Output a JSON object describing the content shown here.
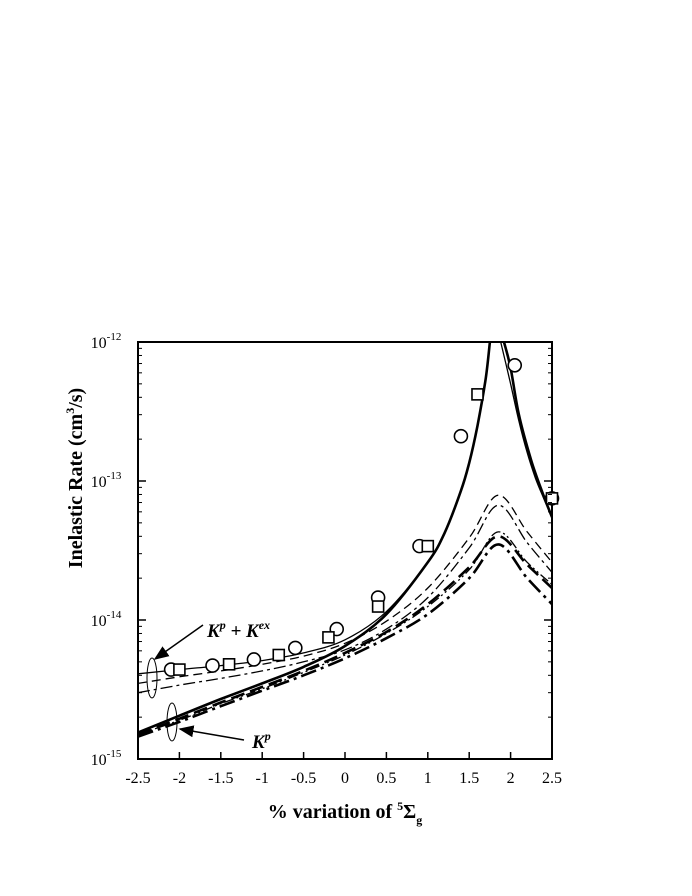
{
  "chart_data": {
    "type": "line",
    "xlabel": {
      "prefix": "% variation of ",
      "sup": "5",
      "main": "Σ",
      "sub": "g"
    },
    "ylabel": {
      "main": "Inelastic Rate (cm",
      "sup": "3",
      "tail": "/s)"
    },
    "xlim": [
      -2.5,
      2.5
    ],
    "ylim": [
      1e-15,
      1e-12
    ],
    "yscale": "log",
    "xticks": [
      "-2.5",
      "-2",
      "-1.5",
      "-1",
      "-0.5",
      "0",
      "0.5",
      "1",
      "1.5",
      "2",
      "2.5"
    ],
    "yticks": [
      {
        "base": "10",
        "exp": "-12",
        "value": 1e-12
      },
      {
        "base": "10",
        "exp": "-13",
        "value": 1e-13
      },
      {
        "base": "10",
        "exp": "-14",
        "value": 1e-14
      },
      {
        "base": "10",
        "exp": "-15",
        "value": 1e-15
      }
    ],
    "annotations": {
      "top": {
        "a": "K",
        "a_sup": "p",
        "plus": " + K",
        "b_sup": "ex"
      },
      "bottom": {
        "a": "K",
        "a_sup": "p"
      }
    },
    "series": [
      {
        "style": "thick-solid",
        "x": [
          -2.5,
          -2,
          -1.5,
          -1,
          -0.5,
          0,
          0.5,
          1,
          1.2,
          1.4,
          1.5,
          1.6,
          1.7,
          1.75
        ],
        "y": [
          1.55e-15,
          2.05e-15,
          2.7e-15,
          3.5e-15,
          4.6e-15,
          6.5e-15,
          1.1e-14,
          2.6e-14,
          4.2e-14,
          8.5e-14,
          1.35e-13,
          2.5e-13,
          5.5e-13,
          1e-12
        ]
      },
      {
        "style": "thick-solid",
        "x": [
          1.92,
          2.0,
          2.1,
          2.25,
          2.4,
          2.5
        ],
        "y": [
          1e-12,
          6.5e-13,
          3e-13,
          1.4e-13,
          7.8e-14,
          5.5e-14
        ]
      },
      {
        "style": "thin-solid",
        "x": [
          -2.5,
          -2,
          -1.5,
          -1,
          -0.5,
          0,
          0.5,
          1,
          1.2,
          1.4,
          1.5,
          1.6,
          1.7,
          1.75
        ],
        "y": [
          4.1e-15,
          4.4e-15,
          4.7e-15,
          5.1e-15,
          5.8e-15,
          7.2e-15,
          1.15e-14,
          2.6e-14,
          4.2e-14,
          8.5e-14,
          1.35e-13,
          2.5e-13,
          5.5e-13,
          1e-12
        ]
      },
      {
        "style": "thin-solid",
        "x": [
          1.88,
          2.0,
          2.1,
          2.2,
          2.3,
          2.4,
          2.5
        ],
        "y": [
          1e-12,
          5e-13,
          2.7e-13,
          1.6e-13,
          1.05e-13,
          7.5e-14,
          5.5e-14
        ]
      },
      {
        "style": "thin-dashed",
        "x": [
          -2.5,
          -2,
          -1.5,
          -1,
          -0.5,
          0,
          0.5,
          1,
          1.5,
          1.85,
          2.2,
          2.5
        ],
        "y": [
          3.5e-15,
          3.9e-15,
          4.3e-15,
          4.8e-15,
          5.5e-15,
          6.8e-15,
          9.8e-15,
          1.7e-14,
          3.9e-14,
          7.9e-14,
          4.3e-14,
          2.6e-14
        ]
      },
      {
        "style": "thin-dashdot",
        "x": [
          -2.5,
          -2,
          -1.5,
          -1,
          -0.5,
          0,
          0.5,
          1,
          1.5,
          1.85,
          2.2,
          2.5
        ],
        "y": [
          3e-15,
          3.4e-15,
          3.8e-15,
          4.3e-15,
          5e-15,
          6.1e-15,
          8.6e-15,
          1.45e-14,
          3.3e-14,
          6.7e-14,
          3.6e-14,
          2.2e-14
        ]
      },
      {
        "style": "thick-dashed",
        "x": [
          -2.5,
          -2,
          -1.5,
          -1,
          -0.5,
          0,
          0.5,
          1,
          1.5,
          1.85,
          2.2,
          2.5
        ],
        "y": [
          1.5e-15,
          1.95e-15,
          2.55e-15,
          3.3e-15,
          4.3e-15,
          5.8e-15,
          8.2e-15,
          1.3e-14,
          2.4e-14,
          4e-14,
          2.5e-14,
          1.7e-14
        ]
      },
      {
        "style": "thick-dashdot",
        "x": [
          -2.5,
          -2,
          -1.5,
          -1,
          -0.5,
          0,
          0.5,
          1,
          1.5,
          1.85,
          2.2,
          2.5
        ],
        "y": [
          1.45e-15,
          1.85e-15,
          2.4e-15,
          3.1e-15,
          4e-15,
          5.3e-15,
          7.4e-15,
          1.1e-14,
          2e-14,
          3.5e-14,
          2e-14,
          1.3e-14
        ]
      },
      {
        "style": "thin-dashdotdot",
        "x": [
          -2.5,
          -2,
          -1.5,
          -1,
          -0.5,
          0,
          0.5,
          1,
          1.5,
          1.85,
          2.2,
          2.5
        ],
        "y": [
          1.5e-15,
          1.9e-15,
          2.5e-15,
          3.2e-15,
          4.2e-15,
          5.6e-15,
          8e-15,
          1.25e-14,
          2.3e-14,
          4.3e-14,
          2.6e-14,
          1.8e-14
        ]
      }
    ],
    "markers": {
      "circles": [
        [
          -2.1,
          4.4e-15
        ],
        [
          -1.6,
          4.7e-15
        ],
        [
          -1.1,
          5.2e-15
        ],
        [
          -0.6,
          6.3e-15
        ],
        [
          -0.1,
          8.6e-15
        ],
        [
          0.4,
          1.45e-14
        ],
        [
          0.9,
          3.4e-14
        ],
        [
          1.4,
          2.1e-13
        ],
        [
          2.05,
          6.8e-13
        ],
        [
          2.5,
          7.5e-14
        ]
      ],
      "squares": [
        [
          -2.0,
          4.4e-15
        ],
        [
          -1.4,
          4.8e-15
        ],
        [
          -0.8,
          5.6e-15
        ],
        [
          -0.2,
          7.5e-15
        ],
        [
          0.4,
          1.25e-14
        ],
        [
          1.0,
          3.4e-14
        ],
        [
          1.6,
          4.2e-13
        ],
        [
          2.5,
          7.5e-14
        ]
      ]
    }
  }
}
